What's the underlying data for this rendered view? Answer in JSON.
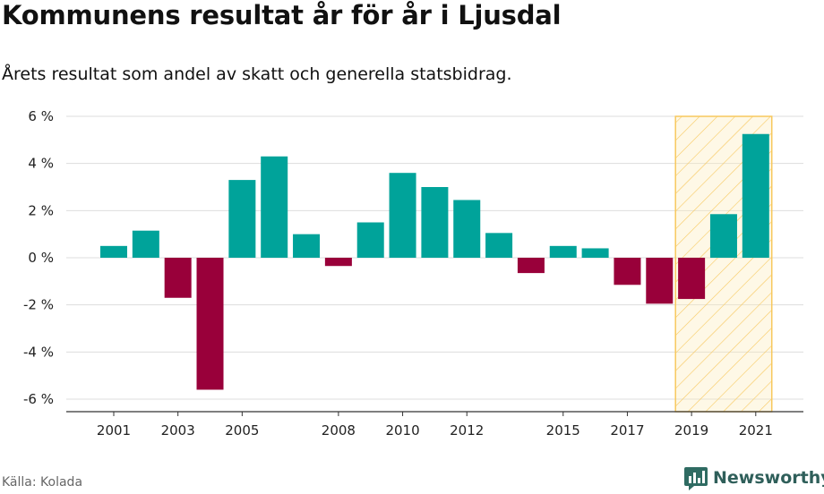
{
  "title": "Kommunens resultat år för år i Ljusdal",
  "subtitle": "Årets resultat som andel av skatt och generella statsbidrag.",
  "source": "Källa: Kolada",
  "brand": {
    "name": "Newsworthy",
    "icon": "newsworthy-chart-icon"
  },
  "colors": {
    "positive": "#00a39a",
    "negative": "#99003a",
    "highlight_fill": "#fdebb6",
    "highlight_stroke": "#f7c85d",
    "grid": "#dddddd",
    "axis": "#333333"
  },
  "chart_data": {
    "type": "bar",
    "x": [
      2001,
      2002,
      2003,
      2004,
      2005,
      2006,
      2007,
      2008,
      2009,
      2010,
      2011,
      2012,
      2013,
      2014,
      2015,
      2016,
      2017,
      2018,
      2019,
      2020,
      2021
    ],
    "values": [
      0.5,
      1.15,
      -1.7,
      -5.6,
      3.3,
      4.3,
      1.0,
      -0.35,
      1.5,
      3.6,
      3.0,
      2.45,
      1.05,
      -0.65,
      0.5,
      0.4,
      -1.15,
      -1.95,
      -1.75,
      1.85,
      5.25
    ],
    "ylim": [
      -6.5,
      6.3
    ],
    "y_ticks": [
      6,
      4,
      2,
      0,
      -2,
      -4,
      -6
    ],
    "y_tick_labels": [
      "6 %",
      "4 %",
      "2 %",
      "0 %",
      "-2 %",
      "-4 %",
      "-6 %"
    ],
    "x_tick_labels": [
      "2001",
      "2003",
      "2005",
      "2008",
      "2010",
      "2012",
      "2015",
      "2017",
      "2019",
      "2021"
    ],
    "highlight_range": [
      2019,
      2021
    ],
    "grid": true
  }
}
